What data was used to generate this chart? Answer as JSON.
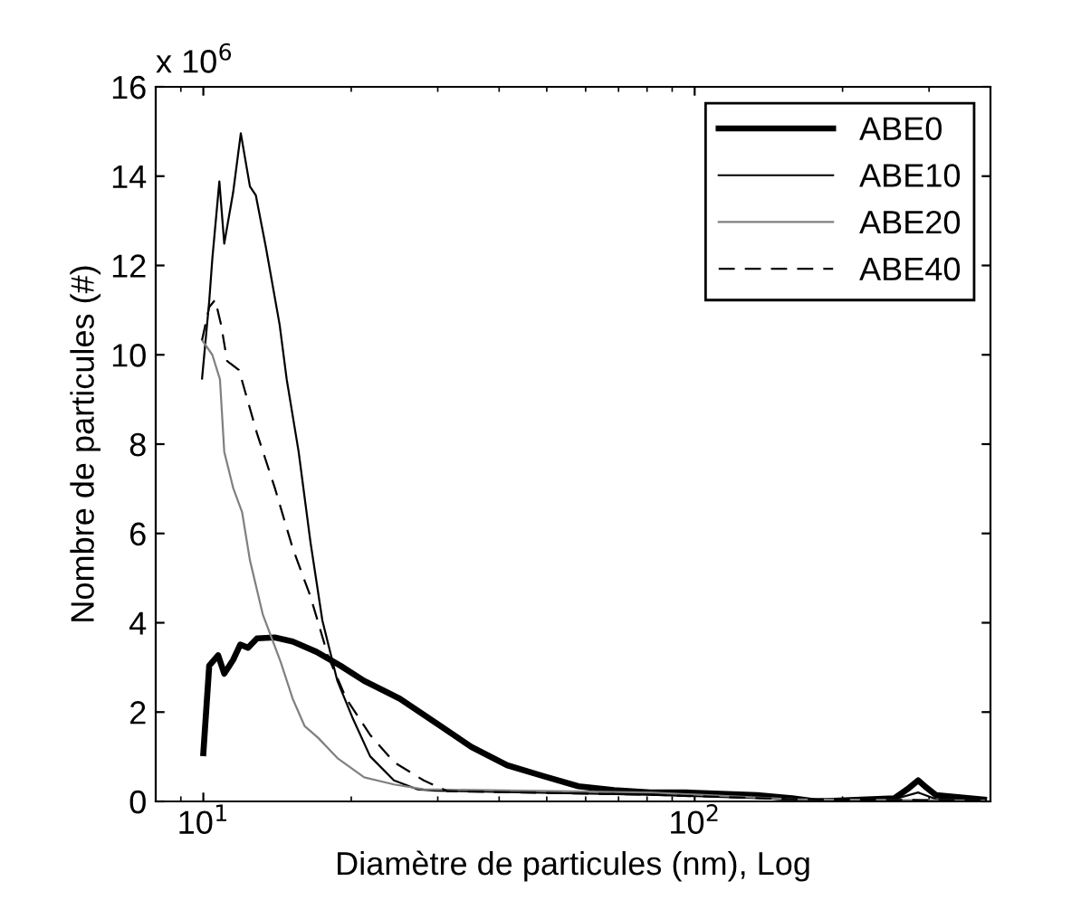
{
  "chart_data": {
    "type": "line",
    "xlabel": "Diamètre de particules (nm), Log",
    "ylabel": "Nombre de particules (#)",
    "annotations": [
      "x 10$^{6}$"
    ],
    "log": "x",
    "xlim": [
      8,
      400
    ],
    "xticks": [
      {
        "value": 10,
        "label": "10$^{1}$"
      },
      {
        "value": 100,
        "label": "10$^{2}$"
      }
    ],
    "ylim": [
      0,
      16
    ],
    "yticks": [
      0,
      2,
      4,
      6,
      8,
      10,
      12,
      14,
      16
    ],
    "grid": false,
    "legend": "top right",
    "series": [
      {
        "name": "ABE0",
        "color": "#000000",
        "line_style": "solid",
        "x": [
          10.0,
          10.28,
          10.72,
          11.03,
          11.5,
          11.89,
          12.33,
          12.86,
          13.98,
          15.2,
          16.99,
          19.0,
          21.25,
          25.12,
          29.7,
          35.12,
          41.52,
          49.1,
          58.0,
          68.6,
          81.1,
          95.9,
          134,
          158,
          177,
          255,
          273,
          285,
          297,
          310,
          388
        ],
        "values": [
          1.08,
          3.04,
          3.27,
          2.86,
          3.17,
          3.51,
          3.44,
          3.65,
          3.67,
          3.58,
          3.35,
          3.04,
          2.7,
          2.3,
          1.76,
          1.22,
          0.81,
          0.57,
          0.34,
          0.25,
          0.2,
          0.2,
          0.14,
          0.07,
          0,
          0.07,
          0.3,
          0.47,
          0.3,
          0.14,
          0.04
        ]
      },
      {
        "name": "ABE10",
        "color": "#000000",
        "line_style": "solid",
        "x": [
          9.94,
          10.28,
          10.43,
          10.78,
          11.03,
          11.5,
          11.92,
          12.44,
          12.79,
          13.4,
          14.3,
          14.78,
          15.63,
          16.52,
          17.47,
          18.74,
          20.09,
          21.85,
          24.43,
          27.31,
          29.7,
          81.1,
          158,
          255,
          285,
          310,
          388
        ],
        "values": [
          9.47,
          11.2,
          12.15,
          13.88,
          12.49,
          13.64,
          14.96,
          13.77,
          13.57,
          12.42,
          10.67,
          9.45,
          7.83,
          5.81,
          4.05,
          2.7,
          1.89,
          1.01,
          0.47,
          0.27,
          0.24,
          0.15,
          0.05,
          0.05,
          0.2,
          0.05,
          0.02
        ]
      },
      {
        "name": "ABE20",
        "color": "#808080",
        "line_style": "solid",
        "x": [
          9.94,
          10.43,
          10.81,
          11.03,
          11.5,
          11.99,
          12.44,
          13.21,
          14.38,
          15.2,
          16.07,
          17.14,
          18.74,
          21.25,
          24.43,
          28.09,
          81.1,
          158,
          388
        ],
        "values": [
          10.33,
          10.0,
          9.45,
          7.83,
          7.02,
          6.48,
          5.4,
          4.19,
          3.11,
          2.3,
          1.69,
          1.42,
          0.97,
          0.54,
          0.38,
          0.27,
          0.2,
          0.05,
          0.02
        ]
      },
      {
        "name": "ABE40",
        "color": "#000000",
        "line_style": "dashed",
        "x": [
          9.94,
          10.28,
          10.57,
          10.87,
          11.18,
          11.82,
          12.16,
          12.86,
          13.98,
          15.2,
          16.52,
          17.96,
          19.54,
          21.85,
          24.43,
          28.09,
          31.4,
          81.1,
          158,
          388
        ],
        "values": [
          10.33,
          11.07,
          11.23,
          10.67,
          9.86,
          9.66,
          9.18,
          8.24,
          7.02,
          5.67,
          4.59,
          3.24,
          2.3,
          1.49,
          0.88,
          0.47,
          0.23,
          0.15,
          0.05,
          0.02
        ]
      }
    ]
  }
}
